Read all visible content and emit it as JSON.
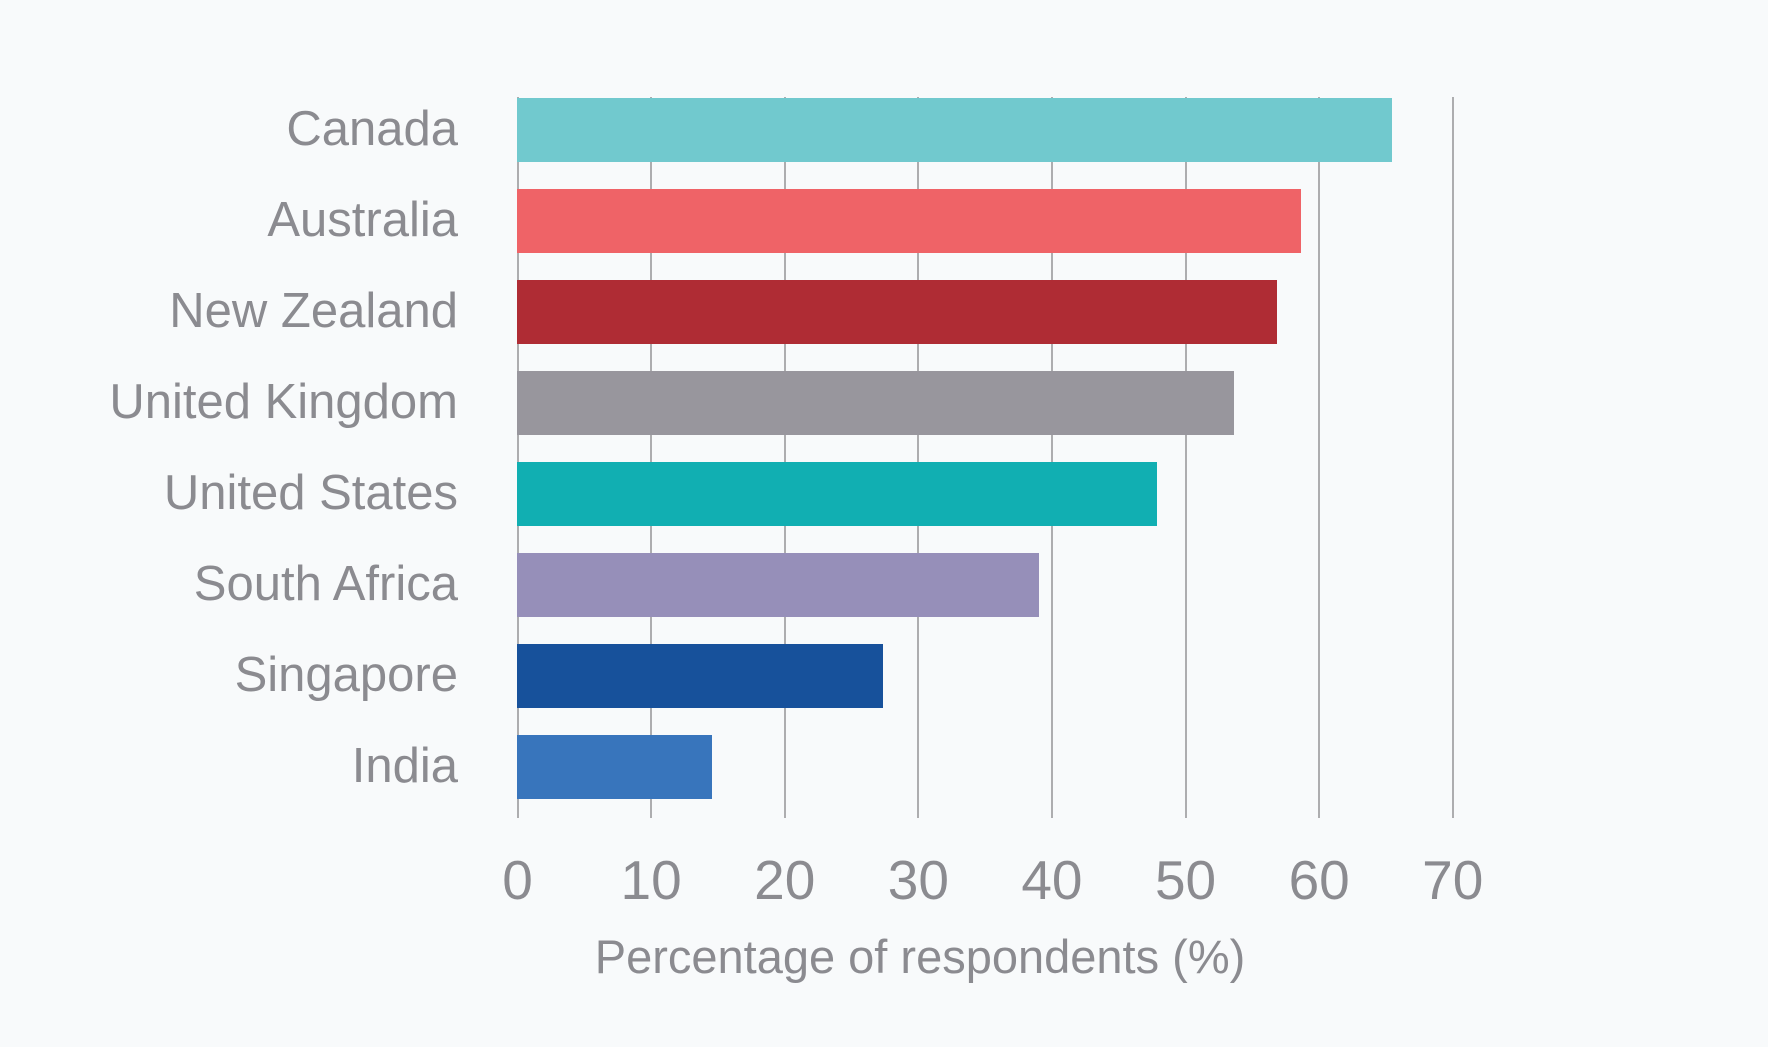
{
  "chart_data": {
    "type": "bar",
    "orientation": "horizontal",
    "title": "",
    "xlabel": "Percentage of respondents (%)",
    "ylabel": "",
    "categories": [
      "Canada",
      "Australia",
      "New Zealand",
      "United Kingdom",
      "United States",
      "South Africa",
      "Singapore",
      "India"
    ],
    "values": [
      65.4,
      58.6,
      56.8,
      53.6,
      47.8,
      39.0,
      27.3,
      14.5
    ],
    "bar_colors": [
      "#71C9CE",
      "#EF6367",
      "#AF2C34",
      "#98969D",
      "#11AFB2",
      "#968FB9",
      "#17519B",
      "#3875BC"
    ],
    "x_ticks": [
      0,
      10,
      20,
      30,
      40,
      50,
      60,
      70
    ],
    "xlim": [
      0,
      72
    ],
    "grid": true,
    "legend": false
  },
  "theme": {
    "background": "#F8FAFB",
    "grid_color": "#ADADAF",
    "text_color": "#8B8B90"
  }
}
